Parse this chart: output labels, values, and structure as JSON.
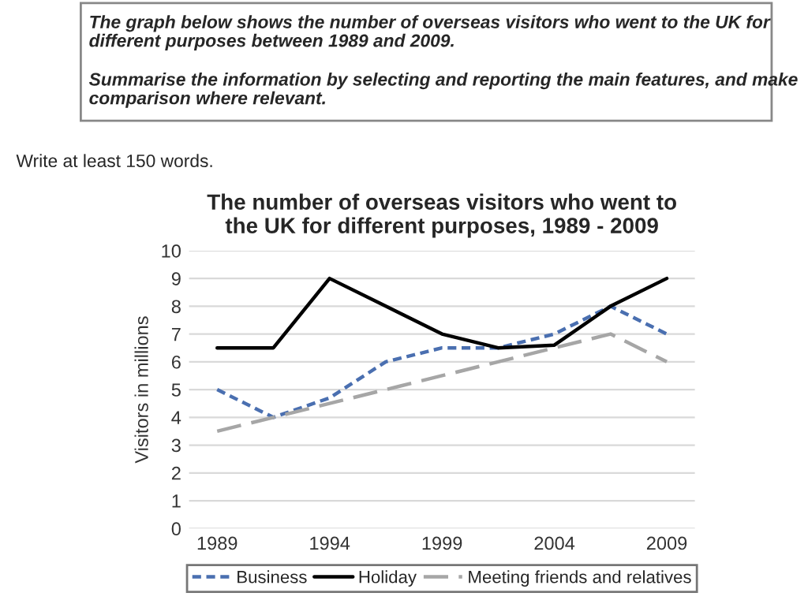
{
  "chart_data": {
    "type": "line",
    "title": "The number of overseas visitors who went to\nthe UK for different purposes, 1989 - 2009",
    "ylabel": "Visitors in millions",
    "annotations": [
      "The graph below shows the number of overseas visitors who went to the UK for\ndifferent purposes between 1989 and 2009.",
      "Summarise the information by selecting and reporting the main features, and make\ncomparison where relevant.",
      "Write at least 150 words."
    ],
    "categories": [
      "1989",
      null,
      "1994",
      null,
      "1999",
      null,
      "2004",
      null,
      "2009"
    ],
    "series": [
      {
        "name": "Business",
        "color": "#4a6fb0",
        "line_style": "dotted",
        "values": [
          5,
          4,
          4.7,
          6,
          6.5,
          6.5,
          7,
          8,
          7
        ]
      },
      {
        "name": "Holiday",
        "color": "#000000",
        "line_style": "solid",
        "values": [
          6.5,
          6.5,
          9,
          8,
          7,
          6.5,
          6.6,
          8,
          9
        ]
      },
      {
        "name": "Meeting friends and relatives",
        "color": "#a6a6a6",
        "line_style": "dashed",
        "values": [
          3.5,
          4,
          4.5,
          5,
          5.5,
          6,
          6.5,
          7,
          6
        ]
      }
    ],
    "ylim": [
      0,
      10
    ],
    "yticks": [
      0,
      1,
      2,
      3,
      4,
      5,
      6,
      7,
      8,
      9,
      10
    ],
    "grid": "y",
    "legend": "bottom",
    "marker": "none"
  }
}
